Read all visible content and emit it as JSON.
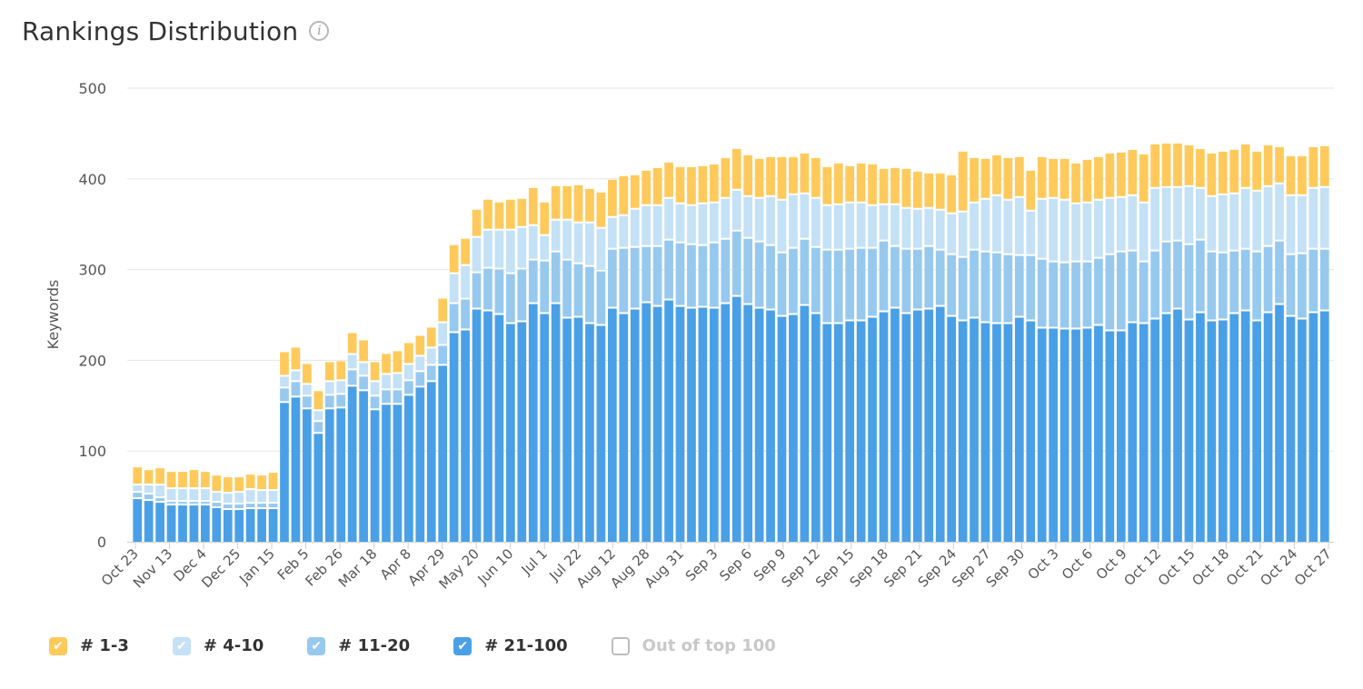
{
  "header": {
    "title": "Rankings Distribution",
    "info_icon": "info-icon"
  },
  "legend": [
    {
      "label": "# 1-3",
      "color": "#FFCA5B",
      "checked": true
    },
    {
      "label": "# 4-10",
      "color": "#C4E1F6",
      "checked": true
    },
    {
      "label": "# 11-20",
      "color": "#97C9EF",
      "checked": true
    },
    {
      "label": "# 21-100",
      "color": "#4AA0E6",
      "checked": true
    },
    {
      "label": "Out of top 100",
      "color": "#BDBDBD",
      "checked": false
    }
  ],
  "chart_data": {
    "type": "bar",
    "stacked": true,
    "ylabel": "Keywords",
    "ylim": [
      0,
      500
    ],
    "yticks": [
      0,
      100,
      200,
      300,
      400,
      500
    ],
    "grid": true,
    "legend_position": "bottom-left",
    "xtick_labels": [
      "Oct 23",
      "Nov 13",
      "Dec 4",
      "Dec 25",
      "Jan 15",
      "Feb 5",
      "Feb 26",
      "Mar 18",
      "Apr 8",
      "Apr 29",
      "May 20",
      "Jun 10",
      "Jul 1",
      "Jul 22",
      "Aug 12",
      "Aug 28",
      "Aug 31",
      "Sep 3",
      "Sep 6",
      "Sep 9",
      "Sep 12",
      "Sep 15",
      "Sep 18",
      "Sep 21",
      "Sep 24",
      "Sep 27",
      "Sep 30",
      "Oct 3",
      "Oct 6",
      "Oct 9",
      "Oct 12",
      "Oct 15",
      "Oct 18",
      "Oct 21",
      "Oct 24",
      "Oct 27"
    ],
    "series": [
      {
        "name": "# 21-100",
        "color": "#4AA0E6",
        "values": [
          47,
          45,
          43,
          40,
          40,
          40,
          40,
          37,
          35,
          35,
          36,
          36,
          36,
          153,
          159,
          146,
          119,
          146,
          147,
          171,
          166,
          145,
          151,
          151,
          161,
          170,
          176,
          194,
          230,
          233,
          256,
          254,
          250,
          240,
          242,
          262,
          251,
          262,
          246,
          247,
          240,
          238,
          257,
          251,
          256,
          263,
          259,
          266,
          259,
          257,
          258,
          257,
          262,
          270,
          261,
          257,
          255,
          248,
          250,
          260,
          251,
          240,
          240,
          243,
          243,
          247,
          253,
          257,
          251,
          255,
          256,
          259,
          248,
          243,
          246,
          241,
          240,
          240,
          247,
          243,
          235,
          235,
          234,
          234,
          235,
          238,
          232,
          232,
          241,
          240,
          245,
          251,
          256,
          244,
          252,
          243,
          244,
          251,
          254,
          243,
          252,
          261,
          248,
          245,
          252,
          254
        ]
      },
      {
        "name": "# 11-20",
        "color": "#97C9EF",
        "values": [
          7,
          7,
          5,
          4,
          4,
          4,
          4,
          6,
          6,
          6,
          6,
          6,
          6,
          16,
          17,
          14,
          13,
          15,
          15,
          18,
          16,
          15,
          16,
          16,
          16,
          17,
          18,
          22,
          32,
          34,
          40,
          47,
          50,
          55,
          58,
          48,
          58,
          57,
          64,
          59,
          63,
          60,
          65,
          72,
          68,
          62,
          66,
          66,
          70,
          70,
          68,
          72,
          71,
          72,
          73,
          73,
          71,
          70,
          73,
          73,
          73,
          81,
          81,
          79,
          80,
          76,
          78,
          68,
          71,
          67,
          69,
          62,
          68,
          70,
          75,
          78,
          78,
          76,
          68,
          72,
          76,
          73,
          73,
          74,
          73,
          74,
          84,
          87,
          79,
          68,
          75,
          79,
          75,
          83,
          80,
          76,
          74,
          69,
          68,
          76,
          73,
          70,
          68,
          72,
          70,
          68
        ]
      },
      {
        "name": "# 4-10",
        "color": "#C4E1F6",
        "values": [
          8,
          10,
          14,
          14,
          14,
          14,
          14,
          11,
          12,
          13,
          15,
          14,
          14,
          13,
          12,
          13,
          12,
          15,
          15,
          17,
          15,
          16,
          17,
          18,
          18,
          17,
          19,
          25,
          33,
          37,
          39,
          42,
          43,
          48,
          46,
          38,
          28,
          35,
          44,
          45,
          48,
          47,
          35,
          36,
          42,
          45,
          45,
          46,
          43,
          43,
          46,
          44,
          45,
          45,
          46,
          48,
          54,
          58,
          59,
          50,
          54,
          49,
          50,
          51,
          50,
          47,
          40,
          46,
          45,
          44,
          42,
          44,
          45,
          50,
          52,
          58,
          63,
          60,
          64,
          49,
          66,
          70,
          69,
          64,
          65,
          64,
          62,
          60,
          61,
          65,
          69,
          60,
          59,
          64,
          57,
          61,
          64,
          63,
          67,
          67,
          66,
          63,
          65,
          64,
          67,
          68
        ]
      },
      {
        "name": "# 1-3",
        "color": "#FFCA5B",
        "values": [
          20,
          17,
          19,
          19,
          19,
          21,
          19,
          19,
          18,
          17,
          17,
          17,
          20,
          27,
          26,
          23,
          22,
          22,
          22,
          24,
          25,
          22,
          23,
          25,
          24,
          23,
          23,
          27,
          32,
          30,
          31,
          34,
          31,
          34,
          32,
          42,
          37,
          38,
          38,
          42,
          38,
          40,
          42,
          44,
          38,
          39,
          42,
          40,
          41,
          43,
          42,
          43,
          45,
          46,
          46,
          44,
          44,
          48,
          42,
          45,
          45,
          43,
          46,
          41,
          44,
          46,
          40,
          41,
          44,
          42,
          39,
          41,
          43,
          67,
          50,
          45,
          45,
          47,
          45,
          45,
          47,
          44,
          46,
          45,
          48,
          48,
          50,
          50,
          51,
          54,
          49,
          49,
          49,
          46,
          44,
          48,
          48,
          49,
          49,
          44,
          46,
          41,
          44,
          44,
          46,
          46
        ]
      }
    ]
  }
}
